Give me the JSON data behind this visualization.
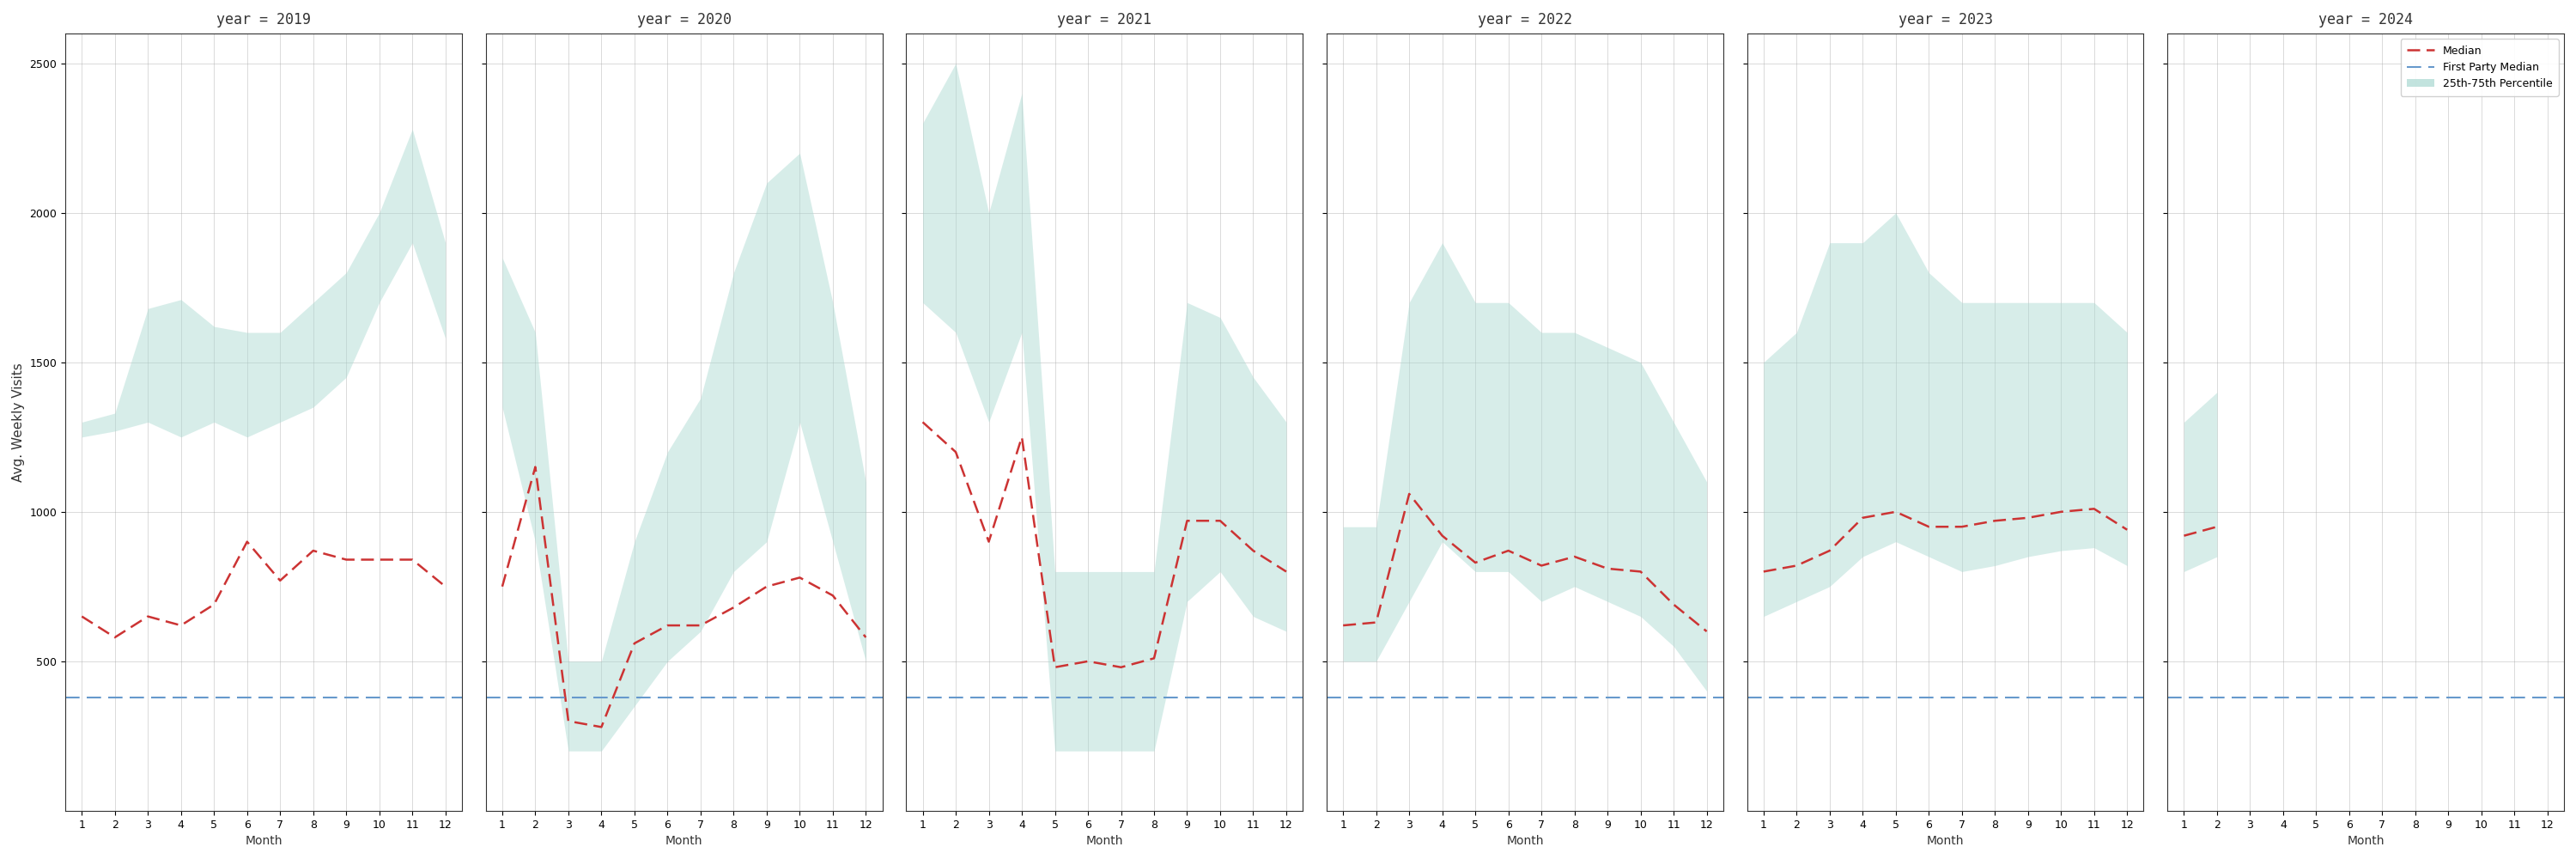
{
  "years": [
    2019,
    2020,
    2021,
    2022,
    2023,
    2024
  ],
  "months": [
    1,
    2,
    3,
    4,
    5,
    6,
    7,
    8,
    9,
    10,
    11,
    12
  ],
  "months_2024": [
    1,
    2
  ],
  "median": {
    "2019": [
      650,
      580,
      650,
      620,
      690,
      900,
      770,
      870,
      840,
      840,
      840,
      750
    ],
    "2020": [
      750,
      1150,
      300,
      280,
      560,
      620,
      620,
      680,
      750,
      780,
      720,
      580
    ],
    "2021": [
      1300,
      1200,
      900,
      1250,
      480,
      500,
      480,
      510,
      970,
      970,
      870,
      800
    ],
    "2022": [
      620,
      630,
      1060,
      920,
      830,
      870,
      820,
      850,
      810,
      800,
      690,
      600
    ],
    "2023": [
      800,
      820,
      870,
      980,
      1000,
      950,
      950,
      970,
      980,
      1000,
      1010,
      940
    ],
    "2024": [
      920,
      950
    ]
  },
  "p25": {
    "2019": [
      1250,
      1270,
      1300,
      1250,
      1300,
      1250,
      1300,
      1350,
      1450,
      1700,
      1900,
      1580
    ],
    "2020": [
      1350,
      900,
      200,
      200,
      350,
      500,
      600,
      800,
      900,
      1300,
      900,
      500
    ],
    "2021": [
      1700,
      1600,
      1300,
      1600,
      200,
      200,
      200,
      200,
      700,
      800,
      650,
      600
    ],
    "2022": [
      500,
      500,
      700,
      900,
      800,
      800,
      700,
      750,
      700,
      650,
      550,
      400
    ],
    "2023": [
      650,
      700,
      750,
      850,
      900,
      850,
      800,
      820,
      850,
      870,
      880,
      820
    ],
    "2024": [
      800,
      850
    ]
  },
  "p75": {
    "2019": [
      1300,
      1330,
      1680,
      1710,
      1620,
      1600,
      1600,
      1700,
      1800,
      2000,
      2280,
      1900
    ],
    "2020": [
      1850,
      1600,
      500,
      500,
      900,
      1200,
      1380,
      1800,
      2100,
      2200,
      1700,
      1100
    ],
    "2021": [
      2300,
      2500,
      2000,
      2400,
      800,
      800,
      800,
      800,
      1700,
      1650,
      1450,
      1300
    ],
    "2022": [
      950,
      950,
      1700,
      1900,
      1700,
      1700,
      1600,
      1600,
      1550,
      1500,
      1300,
      1100
    ],
    "2023": [
      1500,
      1600,
      1900,
      1900,
      2000,
      1800,
      1700,
      1700,
      1700,
      1700,
      1700,
      1600
    ],
    "2024": [
      1300,
      1400
    ]
  },
  "first_party_median": 380,
  "ylim": [
    0,
    2600
  ],
  "yticks": [
    500,
    1000,
    1500,
    2000,
    2500
  ],
  "fill_color": "#a8d8d0",
  "fill_alpha": 0.45,
  "median_color": "#cc3333",
  "fp_median_color": "#6699cc",
  "ylabel": "Avg. Weekly Visits",
  "xlabel": "Month",
  "title_fontsize": 12,
  "axis_fontsize": 10,
  "tick_fontsize": 9,
  "legend_fontsize": 9,
  "background_color": "#ffffff",
  "grid_color": "#aaaaaa",
  "grid_alpha": 0.5,
  "grid_linewidth": 0.6
}
